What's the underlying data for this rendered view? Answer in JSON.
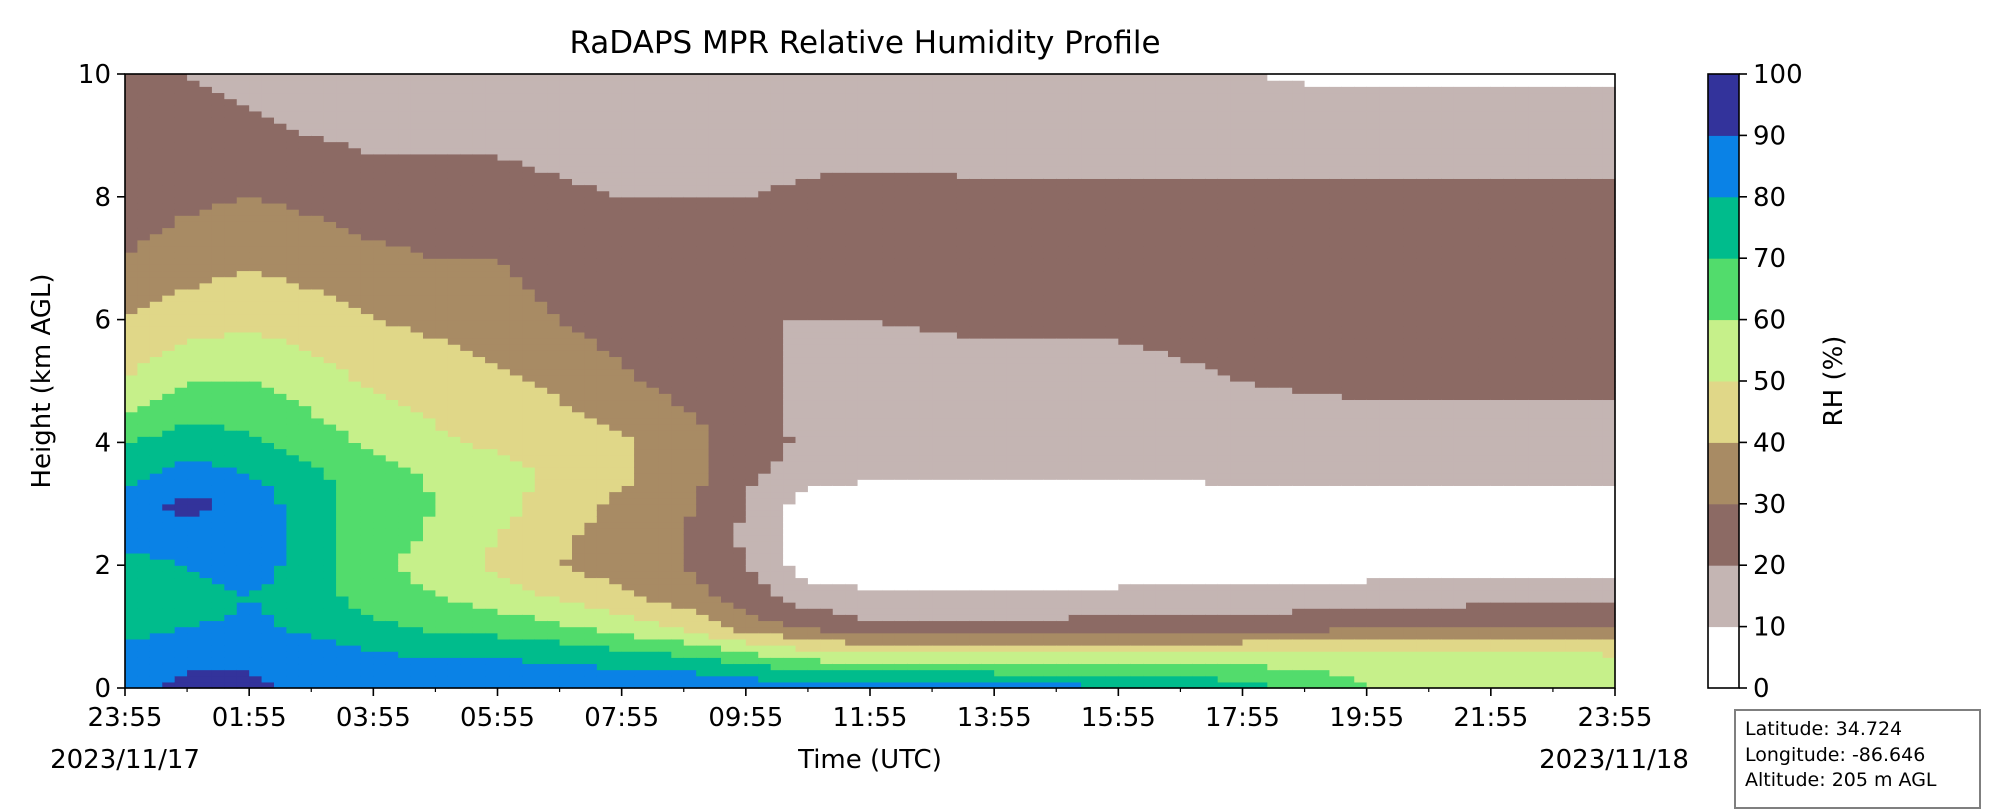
{
  "chart_data": {
    "type": "heatmap",
    "subtype": "filled-contour",
    "title": "RaDAPS MPR Relative Humidity Profile",
    "xlabel": "Time (UTC)",
    "ylabel": "Height (km AGL)",
    "x_tick_labels": [
      "23:55",
      "01:55",
      "03:55",
      "05:55",
      "07:55",
      "09:55",
      "11:55",
      "13:55",
      "15:55",
      "17:55",
      "19:55",
      "21:55",
      "23:55"
    ],
    "x_start_date": "2023/11/17",
    "x_end_date": "2023/11/18",
    "ylim": [
      0,
      10
    ],
    "y_ticks": [
      0,
      2,
      4,
      6,
      8,
      10
    ],
    "colorbar": {
      "label": "RH (%)",
      "ticks": [
        0,
        10,
        20,
        30,
        40,
        50,
        60,
        70,
        80,
        90,
        100
      ],
      "colors": [
        "#ffffff",
        "#c4b5b3",
        "#8c6a64",
        "#a88b64",
        "#e0d788",
        "#c6f08a",
        "#52dc6c",
        "#00bc8c",
        "#0a82e6",
        "#33339b"
      ]
    },
    "rh_field": {
      "hours_since_start": [
        0,
        1,
        2,
        3,
        4,
        5,
        6,
        7,
        8,
        9,
        10,
        11,
        12,
        14,
        16,
        18,
        20,
        22,
        24
      ],
      "heights_km": [
        0,
        0.5,
        1,
        1.5,
        2,
        2.5,
        3,
        3.5,
        4,
        5,
        6,
        7,
        8,
        9,
        10
      ],
      "values": [
        [
          88,
          85,
          75,
          70,
          75,
          85,
          88,
          75,
          70,
          50,
          40,
          30,
          25,
          20,
          20
        ],
        [
          92,
          88,
          80,
          75,
          80,
          88,
          92,
          85,
          75,
          60,
          45,
          35,
          28,
          22,
          20
        ],
        [
          92,
          88,
          82,
          80,
          85,
          88,
          88,
          80,
          72,
          60,
          48,
          38,
          30,
          22,
          18
        ],
        [
          88,
          85,
          78,
          75,
          75,
          72,
          72,
          72,
          65,
          55,
          45,
          35,
          28,
          20,
          15
        ],
        [
          88,
          82,
          72,
          65,
          62,
          66,
          68,
          65,
          58,
          48,
          40,
          32,
          25,
          18,
          15
        ],
        [
          88,
          80,
          68,
          60,
          56,
          58,
          60,
          58,
          52,
          45,
          38,
          30,
          25,
          18,
          15
        ],
        [
          88,
          80,
          66,
          55,
          48,
          50,
          54,
          54,
          48,
          42,
          35,
          30,
          24,
          18,
          14
        ],
        [
          88,
          78,
          62,
          48,
          40,
          42,
          45,
          48,
          45,
          38,
          30,
          25,
          22,
          16,
          14
        ],
        [
          90,
          75,
          55,
          42,
          35,
          35,
          38,
          42,
          42,
          32,
          25,
          22,
          20,
          15,
          14
        ],
        [
          90,
          72,
          48,
          35,
          30,
          30,
          32,
          35,
          35,
          26,
          22,
          20,
          20,
          15,
          14
        ],
        [
          88,
          65,
          35,
          25,
          20,
          18,
          20,
          22,
          25,
          22,
          20,
          20,
          20,
          15,
          14
        ],
        [
          85,
          58,
          28,
          15,
          5,
          5,
          5,
          15,
          18,
          18,
          20,
          20,
          22,
          16,
          14
        ],
        [
          85,
          55,
          22,
          12,
          3,
          3,
          3,
          12,
          15,
          16,
          20,
          22,
          22,
          17,
          14
        ],
        [
          85,
          55,
          22,
          12,
          3,
          3,
          3,
          12,
          15,
          16,
          22,
          25,
          22,
          16,
          12
        ],
        [
          82,
          55,
          24,
          13,
          3,
          3,
          3,
          12,
          15,
          16,
          22,
          25,
          22,
          16,
          12
        ],
        [
          75,
          55,
          25,
          13,
          4,
          4,
          4,
          13,
          15,
          20,
          25,
          25,
          22,
          16,
          10
        ],
        [
          60,
          55,
          28,
          15,
          5,
          5,
          5,
          13,
          15,
          22,
          28,
          26,
          22,
          16,
          8
        ],
        [
          55,
          55,
          30,
          16,
          5,
          5,
          5,
          13,
          16,
          22,
          30,
          26,
          22,
          16,
          8
        ],
        [
          55,
          52,
          30,
          16,
          5,
          5,
          5,
          13,
          16,
          22,
          30,
          28,
          22,
          16,
          8
        ]
      ]
    }
  },
  "info_box": {
    "latitude": "Latitude: 34.724",
    "longitude": "Longitude: -86.646",
    "altitude": "Altitude: 205 m AGL"
  }
}
